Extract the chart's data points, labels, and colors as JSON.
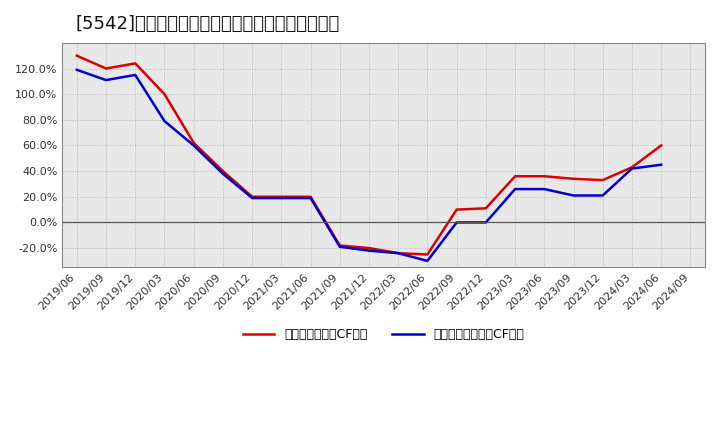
{
  "title": "[5542]　有利子負債キャッシュフロー比率の推移",
  "x_labels": [
    "2019/06",
    "2019/09",
    "2019/12",
    "2020/03",
    "2020/06",
    "2020/09",
    "2020/12",
    "2021/03",
    "2021/06",
    "2021/09",
    "2021/12",
    "2022/03",
    "2022/06",
    "2022/09",
    "2022/12",
    "2023/03",
    "2023/06",
    "2023/09",
    "2023/12",
    "2024/03",
    "2024/06",
    "2024/09"
  ],
  "red_series": {
    "label": "有利子負債営業CF比率",
    "color": "#dd0000",
    "values": [
      130,
      120,
      124,
      100,
      62,
      40,
      20,
      20,
      20,
      -18,
      -20,
      -24,
      -25,
      10,
      11,
      36,
      36,
      34,
      33,
      43,
      60,
      null
    ]
  },
  "blue_series": {
    "label": "有利子負債フリーCF比率",
    "color": "#0000cc",
    "values": [
      119,
      111,
      115,
      79,
      60,
      38,
      19,
      19,
      19,
      -19,
      -22,
      -24,
      -30,
      0,
      0,
      26,
      26,
      21,
      21,
      42,
      45,
      null
    ]
  },
  "ylim": [
    -35,
    140
  ],
  "yticks": [
    -20,
    0,
    20,
    40,
    60,
    80,
    100,
    120
  ],
  "background_color": "#ffffff",
  "plot_bg_color": "#e8e8e8",
  "grid_color": "#aaaaaa",
  "title_fontsize": 13,
  "legend_fontsize": 9,
  "tick_fontsize": 8
}
